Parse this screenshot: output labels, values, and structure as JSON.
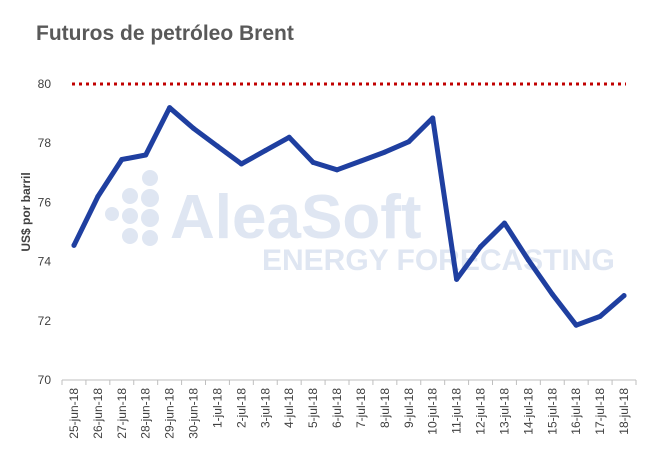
{
  "chart_data": {
    "type": "line",
    "title": "Futuros de petróleo Brent",
    "ylabel": "US$ por barril",
    "xlabel": "",
    "ylim": [
      70,
      80
    ],
    "yticks": [
      70,
      72,
      74,
      76,
      78,
      80
    ],
    "categories": [
      "25-jun-18",
      "26-jun-18",
      "27-jun-18",
      "28-jun-18",
      "29-jun-18",
      "30-jun-18",
      "1-jul-18",
      "2-jul-18",
      "3-jul-18",
      "4-jul-18",
      "5-jul-18",
      "6-jul-18",
      "7-jul-18",
      "8-jul-18",
      "9-jul-18",
      "10-jul-18",
      "11-jul-18",
      "12-jul-18",
      "13-jul-18",
      "14-jul-18",
      "15-jul-18",
      "16-jul-18",
      "17-jul-18",
      "18-jul-18"
    ],
    "series": [
      {
        "values": [
          74.55,
          76.2,
          77.45,
          77.6,
          79.2,
          78.5,
          77.9,
          77.3,
          77.75,
          78.2,
          77.35,
          77.1,
          77.4,
          77.7,
          78.05,
          78.85,
          73.4,
          74.5,
          75.3,
          74.05,
          72.9,
          71.85,
          72.15,
          72.85
        ],
        "color": "#1f3fa0"
      }
    ],
    "reference_line": {
      "value": 80,
      "color": "#c00000",
      "style": "dotted"
    },
    "grid": false,
    "legend": "none"
  },
  "watermark": {
    "brand": "AleaSoft",
    "tagline": "ENERGY FORECASTING"
  }
}
